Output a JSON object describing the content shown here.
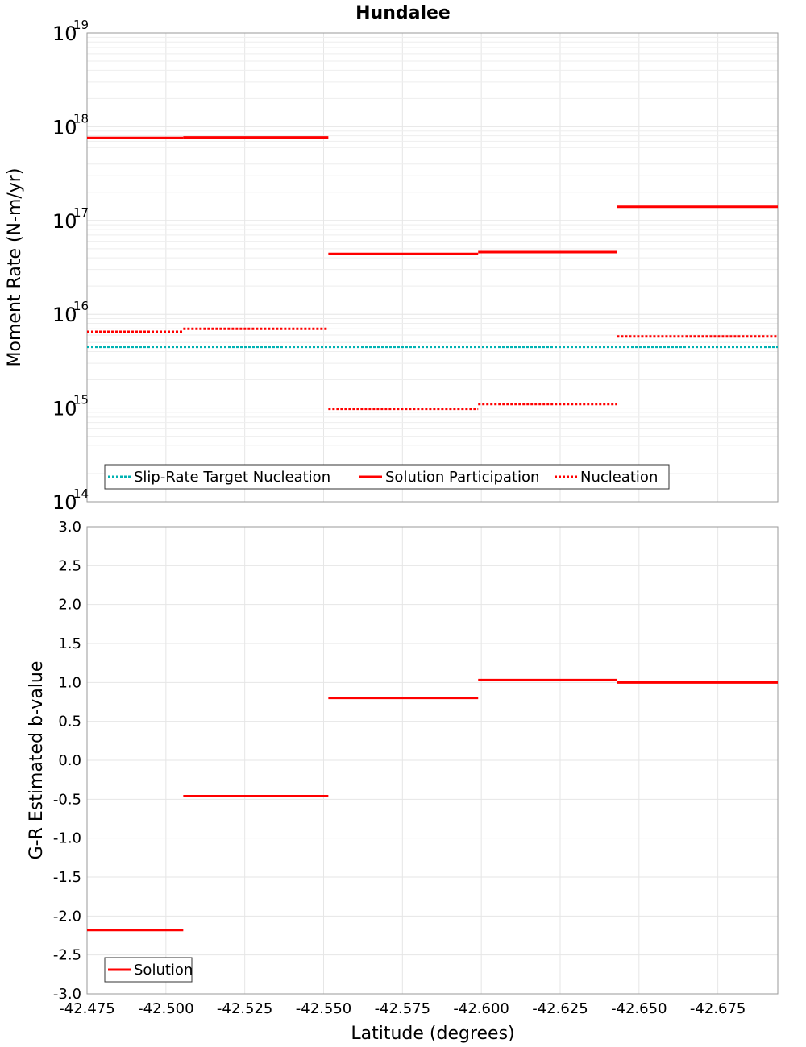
{
  "title": "Hundalee",
  "chart_data": [
    {
      "type": "line",
      "title": "Hundalee",
      "xlabel": "Latitude (degrees)",
      "ylabel": "Moment Rate (N-m/yr)",
      "yscale": "log",
      "ylim": [
        100000000000000.0,
        1e+19
      ],
      "xlim": [
        -42.475,
        -42.694
      ],
      "yticks": [
        {
          "base": "10",
          "exp": "14"
        },
        {
          "base": "10",
          "exp": "15"
        },
        {
          "base": "10",
          "exp": "16"
        },
        {
          "base": "10",
          "exp": "17"
        },
        {
          "base": "10",
          "exp": "18"
        },
        {
          "base": "10",
          "exp": "19"
        }
      ],
      "grid": true,
      "legend_position": "bottom-left",
      "legend": [
        {
          "label": "Slip-Rate Target Nucleation",
          "color": "#00b2b2",
          "style": "dotted"
        },
        {
          "label": "Solution Participation",
          "color": "#ff0000",
          "style": "solid"
        },
        {
          "label": "Nucleation",
          "color": "#ff0000",
          "style": "dotted"
        }
      ],
      "series": [
        {
          "name": "Slip-Rate Target Nucleation",
          "color": "#00b2b2",
          "style": "dotted",
          "segments": [
            {
              "x": [
                -42.475,
                -42.694
              ],
              "y": 4500000000000000.0
            }
          ]
        },
        {
          "name": "Solution Participation",
          "color": "#ff0000",
          "style": "solid",
          "segments": [
            {
              "x": [
                -42.475,
                -42.5055
              ],
              "y": 7.6e+17
            },
            {
              "x": [
                -42.5055,
                -42.5515
              ],
              "y": 7.7e+17
            },
            {
              "x": [
                -42.5515,
                -42.599
              ],
              "y": 4.4e+16
            },
            {
              "x": [
                -42.599,
                -42.643
              ],
              "y": 4.6e+16
            },
            {
              "x": [
                -42.643,
                -42.694
              ],
              "y": 1.4e+17
            }
          ]
        },
        {
          "name": "Nucleation",
          "color": "#ff0000",
          "style": "dotted",
          "segments": [
            {
              "x": [
                -42.475,
                -42.5055
              ],
              "y": 6500000000000000.0
            },
            {
              "x": [
                -42.5055,
                -42.5515
              ],
              "y": 7000000000000000.0
            },
            {
              "x": [
                -42.5515,
                -42.599
              ],
              "y": 980000000000000.0
            },
            {
              "x": [
                -42.599,
                -42.643
              ],
              "y": 1100000000000000.0
            },
            {
              "x": [
                -42.643,
                -42.694
              ],
              "y": 5800000000000000.0
            }
          ]
        }
      ]
    },
    {
      "type": "line",
      "xlabel": "Latitude (degrees)",
      "ylabel": "G-R Estimated b-value",
      "ylim": [
        -3.0,
        3.0
      ],
      "xlim": [
        -42.475,
        -42.694
      ],
      "yticks": [
        "-3.0",
        "-2.5",
        "-2.0",
        "-1.5",
        "-1.0",
        "-0.5",
        "0.0",
        "0.5",
        "1.0",
        "1.5",
        "2.0",
        "2.5",
        "3.0"
      ],
      "xticks": [
        "-42.475",
        "-42.500",
        "-42.525",
        "-42.550",
        "-42.575",
        "-42.600",
        "-42.625",
        "-42.650",
        "-42.675"
      ],
      "grid": true,
      "legend_position": "bottom-left",
      "legend": [
        {
          "label": "Solution",
          "color": "#ff0000",
          "style": "solid"
        }
      ],
      "series": [
        {
          "name": "Solution",
          "color": "#ff0000",
          "style": "solid",
          "segments": [
            {
              "x": [
                -42.475,
                -42.5055
              ],
              "y": -2.18
            },
            {
              "x": [
                -42.5055,
                -42.5515
              ],
              "y": -0.46
            },
            {
              "x": [
                -42.5515,
                -42.599
              ],
              "y": 0.8
            },
            {
              "x": [
                -42.599,
                -42.643
              ],
              "y": 1.03
            },
            {
              "x": [
                -42.643,
                -42.694
              ],
              "y": 1.0
            }
          ]
        }
      ]
    }
  ]
}
